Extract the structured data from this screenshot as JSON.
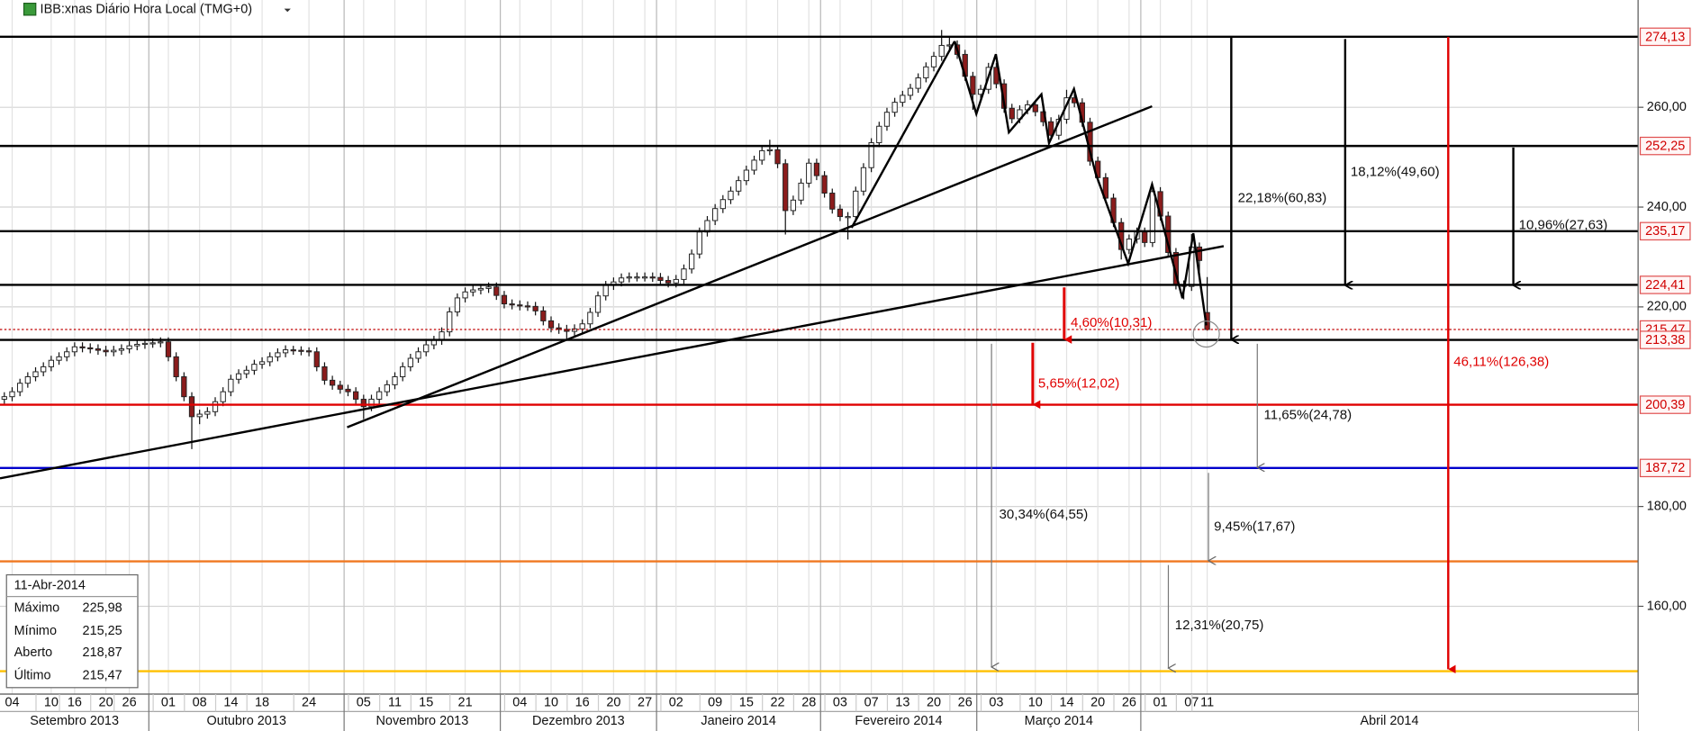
{
  "chart_data": {
    "type": "candlestick",
    "title": "IBB:xnas Diário Hora Local (TMG+0)",
    "categories": [
      null,
      "04",
      null,
      null,
      null,
      null,
      "10",
      null,
      null,
      "16",
      null,
      null,
      null,
      "20",
      null,
      null,
      "26",
      null,
      null,
      null,
      null,
      "01",
      null,
      null,
      null,
      "08",
      null,
      null,
      null,
      "14",
      null,
      null,
      null,
      "18",
      null,
      null,
      null,
      null,
      null,
      "24",
      null,
      null,
      null,
      null,
      null,
      null,
      "05",
      null,
      null,
      null,
      "11",
      null,
      null,
      null,
      "15",
      null,
      null,
      null,
      null,
      "21",
      null,
      null,
      null,
      null,
      null,
      null,
      "04",
      null,
      null,
      null,
      "10",
      null,
      null,
      null,
      "16",
      null,
      null,
      null,
      "20",
      null,
      null,
      null,
      "27",
      null,
      null,
      null,
      "02",
      null,
      null,
      null,
      null,
      "09",
      null,
      null,
      null,
      "15",
      null,
      null,
      null,
      "22",
      null,
      null,
      null,
      "28",
      null,
      null,
      null,
      "03",
      null,
      null,
      null,
      "07",
      null,
      null,
      null,
      "13",
      null,
      null,
      null,
      "20",
      null,
      null,
      null,
      "26",
      null,
      null,
      null,
      "03",
      null,
      null,
      null,
      null,
      "10",
      null,
      null,
      null,
      "14",
      null,
      null,
      null,
      "20",
      null,
      null,
      null,
      "26",
      null,
      null,
      null,
      "01",
      null,
      null,
      null,
      "07",
      null,
      "11"
    ],
    "months": [
      "Setembro 2013",
      "Outubro 2013",
      "Novembro 2013",
      "Dezembro 2013",
      "Janeiro 2014",
      "Fevereiro 2014",
      "Março 2014",
      "Abril 2014"
    ],
    "ohlc": [
      [
        201.5,
        202.9,
        200.6,
        202
      ],
      [
        202,
        203.9,
        201.1,
        203
      ],
      [
        203,
        205.6,
        202.1,
        204.7
      ],
      [
        204.7,
        206.9,
        203.8,
        206
      ],
      [
        206,
        207.9,
        205.1,
        207
      ],
      [
        207,
        208.9,
        206.1,
        208
      ],
      [
        208,
        210.2,
        207.1,
        209.3
      ],
      [
        209.3,
        210.9,
        208.4,
        210
      ],
      [
        210,
        211.9,
        209.1,
        211
      ],
      [
        211,
        212.9,
        210.1,
        212
      ],
      [
        212,
        212.9,
        210.9,
        211.8
      ],
      [
        211.8,
        212.7,
        210.7,
        211.6
      ],
      [
        211.6,
        212.5,
        210.4,
        211.3
      ],
      [
        211.3,
        212.2,
        210.1,
        211
      ],
      [
        211,
        212.2,
        210.1,
        211.3
      ],
      [
        211.3,
        212.5,
        210.4,
        211.6
      ],
      [
        211.6,
        213.1,
        210.7,
        212.2
      ],
      [
        212.2,
        213.4,
        211.3,
        212.5
      ],
      [
        212.5,
        213.6,
        211.6,
        212.7
      ],
      [
        212.7,
        213.7,
        211.8,
        212.8
      ],
      [
        212.8,
        213.9,
        211.9,
        213
      ],
      [
        213,
        213.9,
        209.1,
        210
      ],
      [
        210,
        210.9,
        205.1,
        206
      ],
      [
        206,
        206.9,
        201.1,
        202
      ],
      [
        202,
        202.9,
        191.5,
        198
      ],
      [
        198,
        199.4,
        196.5,
        198.5
      ],
      [
        198.5,
        199.9,
        197.6,
        199
      ],
      [
        199,
        201.9,
        198.1,
        201
      ],
      [
        201,
        203.9,
        200.1,
        203
      ],
      [
        203,
        206.4,
        202.1,
        205.5
      ],
      [
        205.5,
        207.5,
        204.6,
        206.6
      ],
      [
        206.6,
        208.2,
        205.7,
        207.3
      ],
      [
        207.3,
        209.4,
        206.4,
        208.5
      ],
      [
        208.5,
        209.9,
        207.6,
        209
      ],
      [
        209,
        210.9,
        208.1,
        210
      ],
      [
        210,
        211.7,
        209.1,
        210.8
      ],
      [
        210.8,
        212.3,
        209.9,
        211.4
      ],
      [
        211.4,
        212.2,
        210.4,
        211.3
      ],
      [
        211.3,
        212.1,
        210.3,
        211.2
      ],
      [
        211.2,
        211.9,
        210.1,
        211
      ],
      [
        211,
        211.9,
        207.1,
        208
      ],
      [
        208,
        208.9,
        204.4,
        205.3
      ],
      [
        205.3,
        206.2,
        203.4,
        204.3
      ],
      [
        204.3,
        205.2,
        202.6,
        203.5
      ],
      [
        203.5,
        204.4,
        202.1,
        203
      ],
      [
        203,
        203.9,
        200.6,
        201.5
      ],
      [
        201.5,
        202.4,
        197.5,
        200
      ],
      [
        200,
        202.4,
        199.1,
        201.5
      ],
      [
        201.5,
        203.9,
        200.6,
        203
      ],
      [
        203,
        205.3,
        202.1,
        204.4
      ],
      [
        204.4,
        206.9,
        203.5,
        206
      ],
      [
        206,
        208.9,
        205.1,
        208
      ],
      [
        208,
        210.6,
        207.1,
        209.7
      ],
      [
        209.7,
        211.9,
        208.8,
        211
      ],
      [
        211,
        213.3,
        210.1,
        212.4
      ],
      [
        212.4,
        214.2,
        211.5,
        213.3
      ],
      [
        213.3,
        215.9,
        212.4,
        215
      ],
      [
        215,
        219.9,
        214.1,
        219
      ],
      [
        219,
        222.7,
        218.1,
        221.8
      ],
      [
        221.8,
        223.9,
        220.9,
        223
      ],
      [
        223,
        224.3,
        222.1,
        223.4
      ],
      [
        223.4,
        224.6,
        222.5,
        223.7
      ],
      [
        223.7,
        224.9,
        222.8,
        224
      ],
      [
        224,
        224.9,
        221.4,
        222.3
      ],
      [
        222.3,
        223.2,
        219.7,
        220.6
      ],
      [
        220.6,
        221.5,
        219.5,
        220.4
      ],
      [
        220.4,
        221.3,
        219.3,
        220.2
      ],
      [
        220.2,
        221.1,
        219.2,
        220.1
      ],
      [
        220.1,
        221,
        218.3,
        219.2
      ],
      [
        219.2,
        220.1,
        216.3,
        217.2
      ],
      [
        217.2,
        218.1,
        214.9,
        215.8
      ],
      [
        215.8,
        216.7,
        214.6,
        215.5
      ],
      [
        215.5,
        216.4,
        213.5,
        215.1
      ],
      [
        215.1,
        216.5,
        214.2,
        215.6
      ],
      [
        215.6,
        217.5,
        214.7,
        216.6
      ],
      [
        216.6,
        219.8,
        215.7,
        218.9
      ],
      [
        218.9,
        223.1,
        218,
        222.2
      ],
      [
        222.2,
        225.2,
        221.3,
        224.3
      ],
      [
        224.3,
        225.9,
        223.4,
        225
      ],
      [
        225,
        226.7,
        224.1,
        225.8
      ],
      [
        225.8,
        226.9,
        224.9,
        226
      ],
      [
        226,
        226.9,
        225.1,
        226
      ],
      [
        226,
        226.9,
        225.1,
        226
      ],
      [
        226,
        226.9,
        225,
        225.9
      ],
      [
        225.9,
        226.8,
        224.4,
        225.3
      ],
      [
        225.3,
        226.2,
        223.9,
        224.8
      ],
      [
        224.8,
        226.4,
        223.9,
        225.5
      ],
      [
        225.5,
        228.5,
        224.6,
        227.6
      ],
      [
        227.6,
        231.5,
        226.7,
        230.6
      ],
      [
        230.6,
        235.9,
        229.7,
        235
      ],
      [
        235,
        238.2,
        234.1,
        237.3
      ],
      [
        237.3,
        240.6,
        236.4,
        239.7
      ],
      [
        239.7,
        242.4,
        238.8,
        241.5
      ],
      [
        241.5,
        244.1,
        240.6,
        243.2
      ],
      [
        243.2,
        246.2,
        242.3,
        245.3
      ],
      [
        245.3,
        248.3,
        244.4,
        247.4
      ],
      [
        247.4,
        250.3,
        246.5,
        249.4
      ],
      [
        249.4,
        252.2,
        248.5,
        251.3
      ],
      [
        251.3,
        253.5,
        250.4,
        251.5
      ],
      [
        251.5,
        252.4,
        247.8,
        248.7
      ],
      [
        248.7,
        249.6,
        234.5,
        239.3
      ],
      [
        239.3,
        242.3,
        238.4,
        241.4
      ],
      [
        241.4,
        245.7,
        240.5,
        244.8
      ],
      [
        244.8,
        249.7,
        243.9,
        248.8
      ],
      [
        248.8,
        249.7,
        245.4,
        246.3
      ],
      [
        246.3,
        247.2,
        241.9,
        242.8
      ],
      [
        242.8,
        243.7,
        238.7,
        239.6
      ],
      [
        239.6,
        240.5,
        237.2,
        238.1
      ],
      [
        238.1,
        239,
        233.5,
        238.1
      ],
      [
        238.1,
        244.1,
        237.2,
        243.2
      ],
      [
        243.2,
        248.8,
        242.3,
        247.9
      ],
      [
        247.9,
        253.8,
        247,
        252.9
      ],
      [
        252.9,
        257.1,
        252,
        256.2
      ],
      [
        256.2,
        259.9,
        255.3,
        259
      ],
      [
        259,
        261.9,
        258.1,
        261
      ],
      [
        261,
        263.3,
        260.1,
        262.4
      ],
      [
        262.4,
        264.7,
        261.5,
        263.8
      ],
      [
        263.8,
        266.8,
        262.9,
        265.9
      ],
      [
        265.9,
        269,
        265,
        268.1
      ],
      [
        268.1,
        271.1,
        267.2,
        270.2
      ],
      [
        270.2,
        275.5,
        269.3,
        272.4
      ],
      [
        272.4,
        274,
        271.6,
        272.5
      ],
      [
        272.5,
        273.4,
        269.7,
        270.6
      ],
      [
        270.6,
        271.5,
        265.3,
        266.2
      ],
      [
        266.2,
        267.1,
        259.5,
        262.6
      ],
      [
        262.6,
        264.5,
        261.7,
        263.6
      ],
      [
        263.6,
        268.9,
        262.7,
        268
      ],
      [
        268,
        268.9,
        263.8,
        264.7
      ],
      [
        264.7,
        265.6,
        258.9,
        259.8
      ],
      [
        259.8,
        260.7,
        256.8,
        257.7
      ],
      [
        257.7,
        260.4,
        256.8,
        259.5
      ],
      [
        259.5,
        261.4,
        258.6,
        260.5
      ],
      [
        260.5,
        261.4,
        258.2,
        259.1
      ],
      [
        259.1,
        260,
        256.2,
        257.1
      ],
      [
        257.1,
        258,
        253.5,
        254.4
      ],
      [
        254.4,
        258.5,
        253.5,
        257.6
      ],
      [
        257.6,
        263.5,
        256.7,
        261.9
      ],
      [
        261.9,
        262.8,
        260,
        260.9
      ],
      [
        260.9,
        261.8,
        256.1,
        257
      ],
      [
        257,
        257.9,
        248.3,
        249.2
      ],
      [
        249.2,
        250.1,
        245,
        245.9
      ],
      [
        245.9,
        246.8,
        240.9,
        241.8
      ],
      [
        241.8,
        242.7,
        236,
        236.9
      ],
      [
        236.9,
        237.8,
        229.5,
        231.5
      ],
      [
        231.5,
        234.5,
        230.6,
        233.6
      ],
      [
        233.6,
        235.9,
        232.7,
        235
      ],
      [
        235,
        235.9,
        232,
        232.9
      ],
      [
        232.9,
        244.5,
        232,
        243.1
      ],
      [
        243.1,
        244,
        237.3,
        238.2
      ],
      [
        238.2,
        239.1,
        230,
        230.9
      ],
      [
        230.9,
        231.8,
        223.5,
        224.4
      ],
      [
        224.4,
        225.3,
        221.5,
        224.1
      ],
      [
        224.1,
        234.6,
        223.2,
        232
      ],
      [
        232,
        232.9,
        226,
        229.3
      ],
      [
        218.87,
        225.98,
        215.25,
        215.47
      ]
    ],
    "up_color": "#ffffff",
    "down_color": "#8b1c1c",
    "ylim": [
      142.4,
      281.5
    ],
    "yticks": [
      {
        "value": 160,
        "label": "160,00"
      },
      {
        "value": 180,
        "label": "180,00"
      },
      {
        "value": 220,
        "label": "220,00"
      },
      {
        "value": 240,
        "label": "240,00"
      },
      {
        "value": 260,
        "label": "260,00"
      }
    ],
    "grid": true,
    "levels": [
      {
        "value": 274.13,
        "label": "274,13",
        "color": "#000000"
      },
      {
        "value": 252.25,
        "label": "252,25",
        "color": "#000000"
      },
      {
        "value": 235.17,
        "label": "235,17",
        "color": "#000000"
      },
      {
        "value": 224.41,
        "label": "224,41",
        "color": "#000000"
      },
      {
        "value": 215.47,
        "label": "215,47",
        "color": "#c00000",
        "style": "dotted"
      },
      {
        "value": 213.38,
        "label": "213,38",
        "color": "#000000"
      },
      {
        "value": 200.39,
        "label": "200,39",
        "color": "#e00000"
      },
      {
        "value": 187.72,
        "label": "187,72",
        "color": "#0000cc"
      },
      {
        "value": 169,
        "color": "#f07820"
      },
      {
        "value": 147,
        "color": "#ffc000"
      }
    ],
    "annotations": [
      "22,18%(60,83)",
      "18,12%(49,60)",
      "10,96%(27,63)",
      "4,60%(10,31)",
      "5,65%(12,02)",
      "46,11%(126,38)",
      "11,65%(24,78)",
      "9,45%(17,67)",
      "30,34%(64,55)",
      "12,31%(20,75)"
    ],
    "info_box": {
      "date": "11-Abr-2014",
      "rows": [
        {
          "label": "Máximo",
          "value": "225,98"
        },
        {
          "label": "Mínimo",
          "value": "215,25"
        },
        {
          "label": "Aberto",
          "value": "218,87"
        },
        {
          "label": "Último",
          "value": "215,47"
        }
      ]
    }
  }
}
